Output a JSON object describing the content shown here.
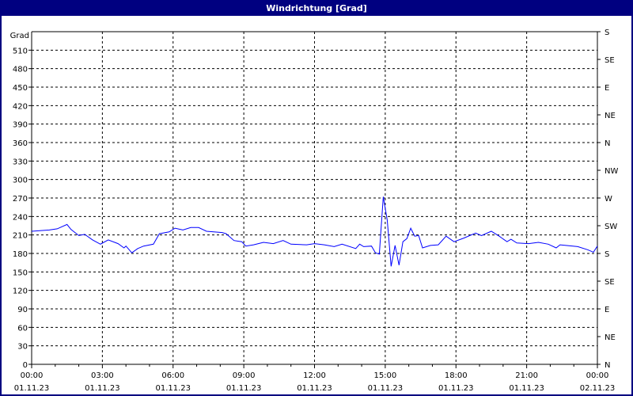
{
  "window": {
    "title": "Windrichtung [Grad]"
  },
  "chart_data": {
    "type": "line",
    "title": "Windrichtung [Grad]",
    "ylabel": "Grad",
    "ylim": [
      0,
      540
    ],
    "yticks": [
      0,
      30,
      60,
      90,
      120,
      150,
      180,
      210,
      240,
      270,
      300,
      330,
      360,
      390,
      420,
      450,
      480,
      510
    ],
    "right_axis": {
      "values": [
        0,
        45,
        90,
        135,
        180,
        225,
        270,
        315,
        360,
        405,
        450,
        495,
        540
      ],
      "labels": [
        "N",
        "NE",
        "E",
        "SE",
        "S",
        "SW",
        "W",
        "NW",
        "N",
        "NE",
        "E",
        "SE",
        "S"
      ]
    },
    "xlim": [
      "01.11.23 00:00",
      "02.11.23 00:00"
    ],
    "xticks": [
      {
        "time": "00:00",
        "date": "01.11.23"
      },
      {
        "time": "03:00",
        "date": "01.11.23"
      },
      {
        "time": "06:00",
        "date": "01.11.23"
      },
      {
        "time": "09:00",
        "date": "01.11.23"
      },
      {
        "time": "12:00",
        "date": "01.11.23"
      },
      {
        "time": "15:00",
        "date": "01.11.23"
      },
      {
        "time": "18:00",
        "date": "01.11.23"
      },
      {
        "time": "21:00",
        "date": "01.11.23"
      },
      {
        "time": "00:00",
        "date": "02.11.23"
      }
    ],
    "grid": true,
    "line_color": "#0000ff",
    "series": [
      {
        "x": [
          "00:00",
          "00:45",
          "01:05",
          "01:30",
          "01:40",
          "02:00",
          "02:15",
          "02:35",
          "02:55",
          "03:15",
          "03:40",
          "03:55",
          "04:00",
          "04:15",
          "04:30",
          "04:45",
          "05:10",
          "05:25",
          "05:50",
          "06:05",
          "06:25",
          "06:45",
          "07:05",
          "07:25",
          "08:05",
          "08:15",
          "08:35",
          "08:55",
          "09:05",
          "09:25",
          "09:50",
          "10:15",
          "10:40",
          "11:00",
          "11:40",
          "12:00",
          "12:25",
          "12:50",
          "13:10",
          "13:45",
          "13:55",
          "14:05",
          "14:25",
          "14:35",
          "14:45",
          "14:55",
          "15:05",
          "15:15",
          "15:25",
          "15:35",
          "15:45",
          "15:55",
          "16:05",
          "16:15",
          "16:25",
          "16:35",
          "16:55",
          "17:15",
          "17:35",
          "17:55",
          "18:20",
          "18:50",
          "19:05",
          "19:30",
          "19:50",
          "20:10",
          "20:20",
          "20:35",
          "21:05",
          "21:30",
          "21:55",
          "22:15",
          "22:25",
          "22:40",
          "23:10",
          "23:35",
          "23:50",
          "24:00"
        ],
        "y": [
          216,
          218,
          220,
          227,
          219,
          209,
          211,
          202,
          195,
          202,
          196,
          189,
          192,
          181,
          188,
          192,
          195,
          212,
          215,
          221,
          218,
          222,
          222,
          216,
          214,
          212,
          201,
          199,
          192,
          194,
          198,
          196,
          201,
          195,
          194,
          196,
          194,
          191,
          195,
          188,
          195,
          191,
          192,
          181,
          179,
          272,
          234,
          159,
          193,
          161,
          199,
          204,
          221,
          208,
          209,
          189,
          193,
          194,
          208,
          199,
          205,
          213,
          209,
          216,
          208,
          199,
          203,
          197,
          196,
          198,
          195,
          189,
          194,
          193,
          191,
          186,
          182,
          192
        ]
      }
    ]
  }
}
